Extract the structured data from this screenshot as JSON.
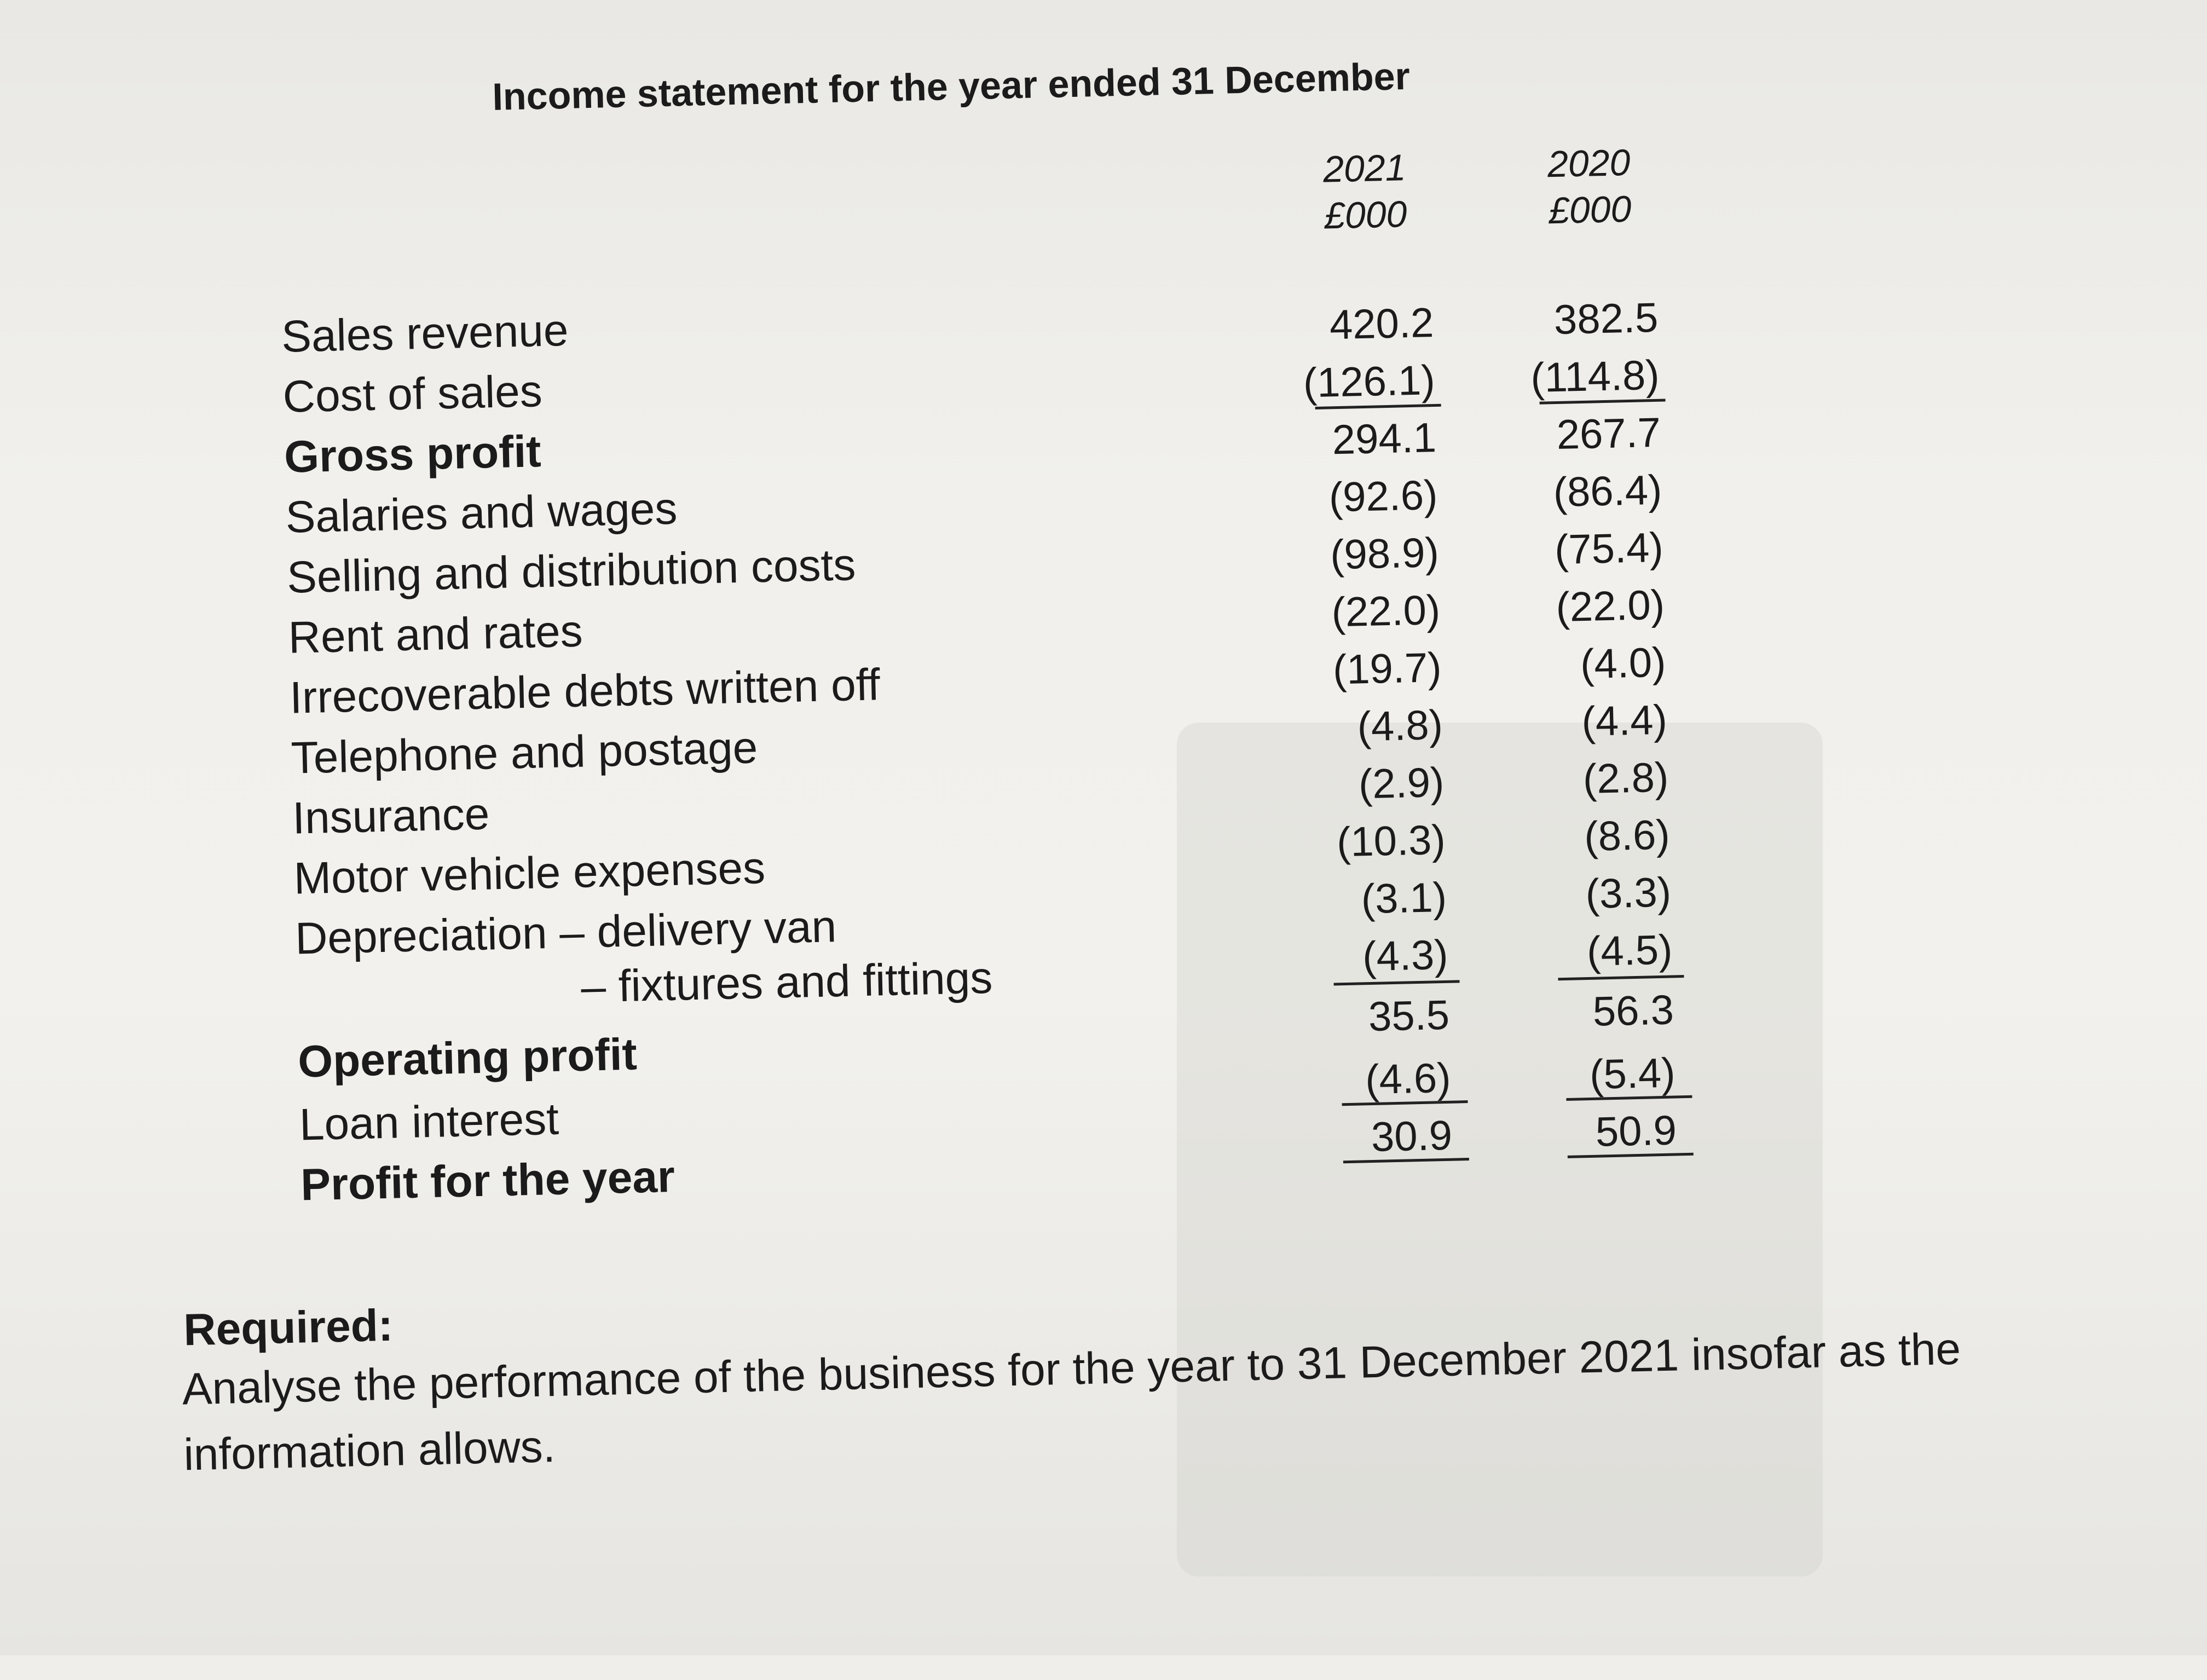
{
  "statement": {
    "title": "Income statement for the year ended 31 December",
    "columns": [
      {
        "year": "2021",
        "unit": "£000"
      },
      {
        "year": "2020",
        "unit": "£000"
      }
    ],
    "rows": [
      {
        "label": "Sales revenue",
        "v2021": "420.2",
        "v2020": "382.5"
      },
      {
        "label": "Cost of sales",
        "v2021": "(126.1)",
        "v2020": "(114.8)"
      },
      {
        "label": "Gross profit",
        "v2021": "294.1",
        "v2020": "267.7"
      },
      {
        "label": "Salaries and wages",
        "v2021": "(92.6)",
        "v2020": "(86.4)"
      },
      {
        "label": "Selling and distribution costs",
        "v2021": "(98.9)",
        "v2020": "(75.4)"
      },
      {
        "label": "Rent and rates",
        "v2021": "(22.0)",
        "v2020": "(22.0)"
      },
      {
        "label": "Irrecoverable debts written off",
        "v2021": "(19.7)",
        "v2020": "(4.0)"
      },
      {
        "label": "Telephone and postage",
        "v2021": "(4.8)",
        "v2020": "(4.4)"
      },
      {
        "label": "Insurance",
        "v2021": "(2.9)",
        "v2020": "(2.8)"
      },
      {
        "label": "Motor vehicle expenses",
        "v2021": "(10.3)",
        "v2020": "(8.6)"
      },
      {
        "label": "Depreciation – delivery van",
        "v2021": "(3.1)",
        "v2020": "(3.3)"
      },
      {
        "label": "– fixtures and fittings",
        "v2021": "(4.3)",
        "v2020": "(4.5)"
      },
      {
        "label": "Operating profit",
        "v2021": "35.5",
        "v2020": "56.3"
      },
      {
        "label": "Loan interest",
        "v2021": "(4.6)",
        "v2020": "(5.4)"
      },
      {
        "label": "Profit for the year",
        "v2021": "30.9",
        "v2020": "50.9"
      }
    ]
  },
  "required": {
    "heading": "Required:",
    "text": "Analyse the performance of the business for the year to 31 December 2021 insofar as the information allows."
  }
}
